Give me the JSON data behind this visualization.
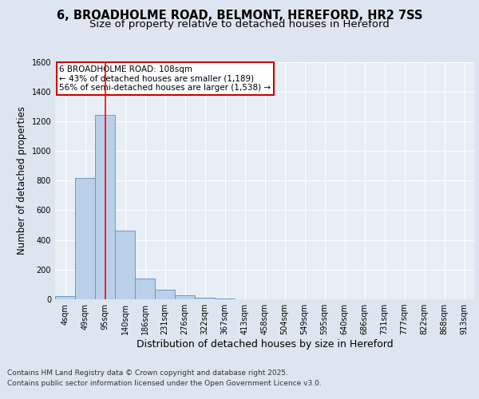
{
  "title": "6, BROADHOLME ROAD, BELMONT, HEREFORD, HR2 7SS",
  "subtitle": "Size of property relative to detached houses in Hereford",
  "xlabel": "Distribution of detached houses by size in Hereford",
  "ylabel": "Number of detached properties",
  "bar_labels": [
    "4sqm",
    "49sqm",
    "95sqm",
    "140sqm",
    "186sqm",
    "231sqm",
    "276sqm",
    "322sqm",
    "367sqm",
    "413sqm",
    "458sqm",
    "504sqm",
    "549sqm",
    "595sqm",
    "640sqm",
    "686sqm",
    "731sqm",
    "777sqm",
    "822sqm",
    "868sqm",
    "913sqm"
  ],
  "bar_values": [
    20,
    820,
    1240,
    460,
    140,
    65,
    25,
    13,
    5,
    0,
    0,
    0,
    0,
    0,
    0,
    0,
    0,
    0,
    0,
    0,
    0
  ],
  "bar_color": "#bad0e8",
  "bar_edge_color": "#6090c0",
  "background_color": "#dde6f0",
  "plot_bg_color": "#e8eef6",
  "grid_color": "#ffffff",
  "redline_x": 2.0,
  "annotation_line1": "6 BROADHOLME ROAD: 108sqm",
  "annotation_line2": "← 43% of detached houses are smaller (1,189)",
  "annotation_line3": "56% of semi-detached houses are larger (1,538) →",
  "annotation_box_color": "#ffffff",
  "annotation_box_edge": "#cc0000",
  "footer_line1": "Contains HM Land Registry data © Crown copyright and database right 2025.",
  "footer_line2": "Contains public sector information licensed under the Open Government Licence v3.0.",
  "ylim": [
    0,
    1600
  ],
  "yticks": [
    0,
    200,
    400,
    600,
    800,
    1000,
    1200,
    1400,
    1600
  ],
  "title_fontsize": 10.5,
  "subtitle_fontsize": 9.5,
  "xlabel_fontsize": 9,
  "ylabel_fontsize": 8.5,
  "tick_fontsize": 7,
  "annotation_fontsize": 7.5,
  "footer_fontsize": 6.5
}
